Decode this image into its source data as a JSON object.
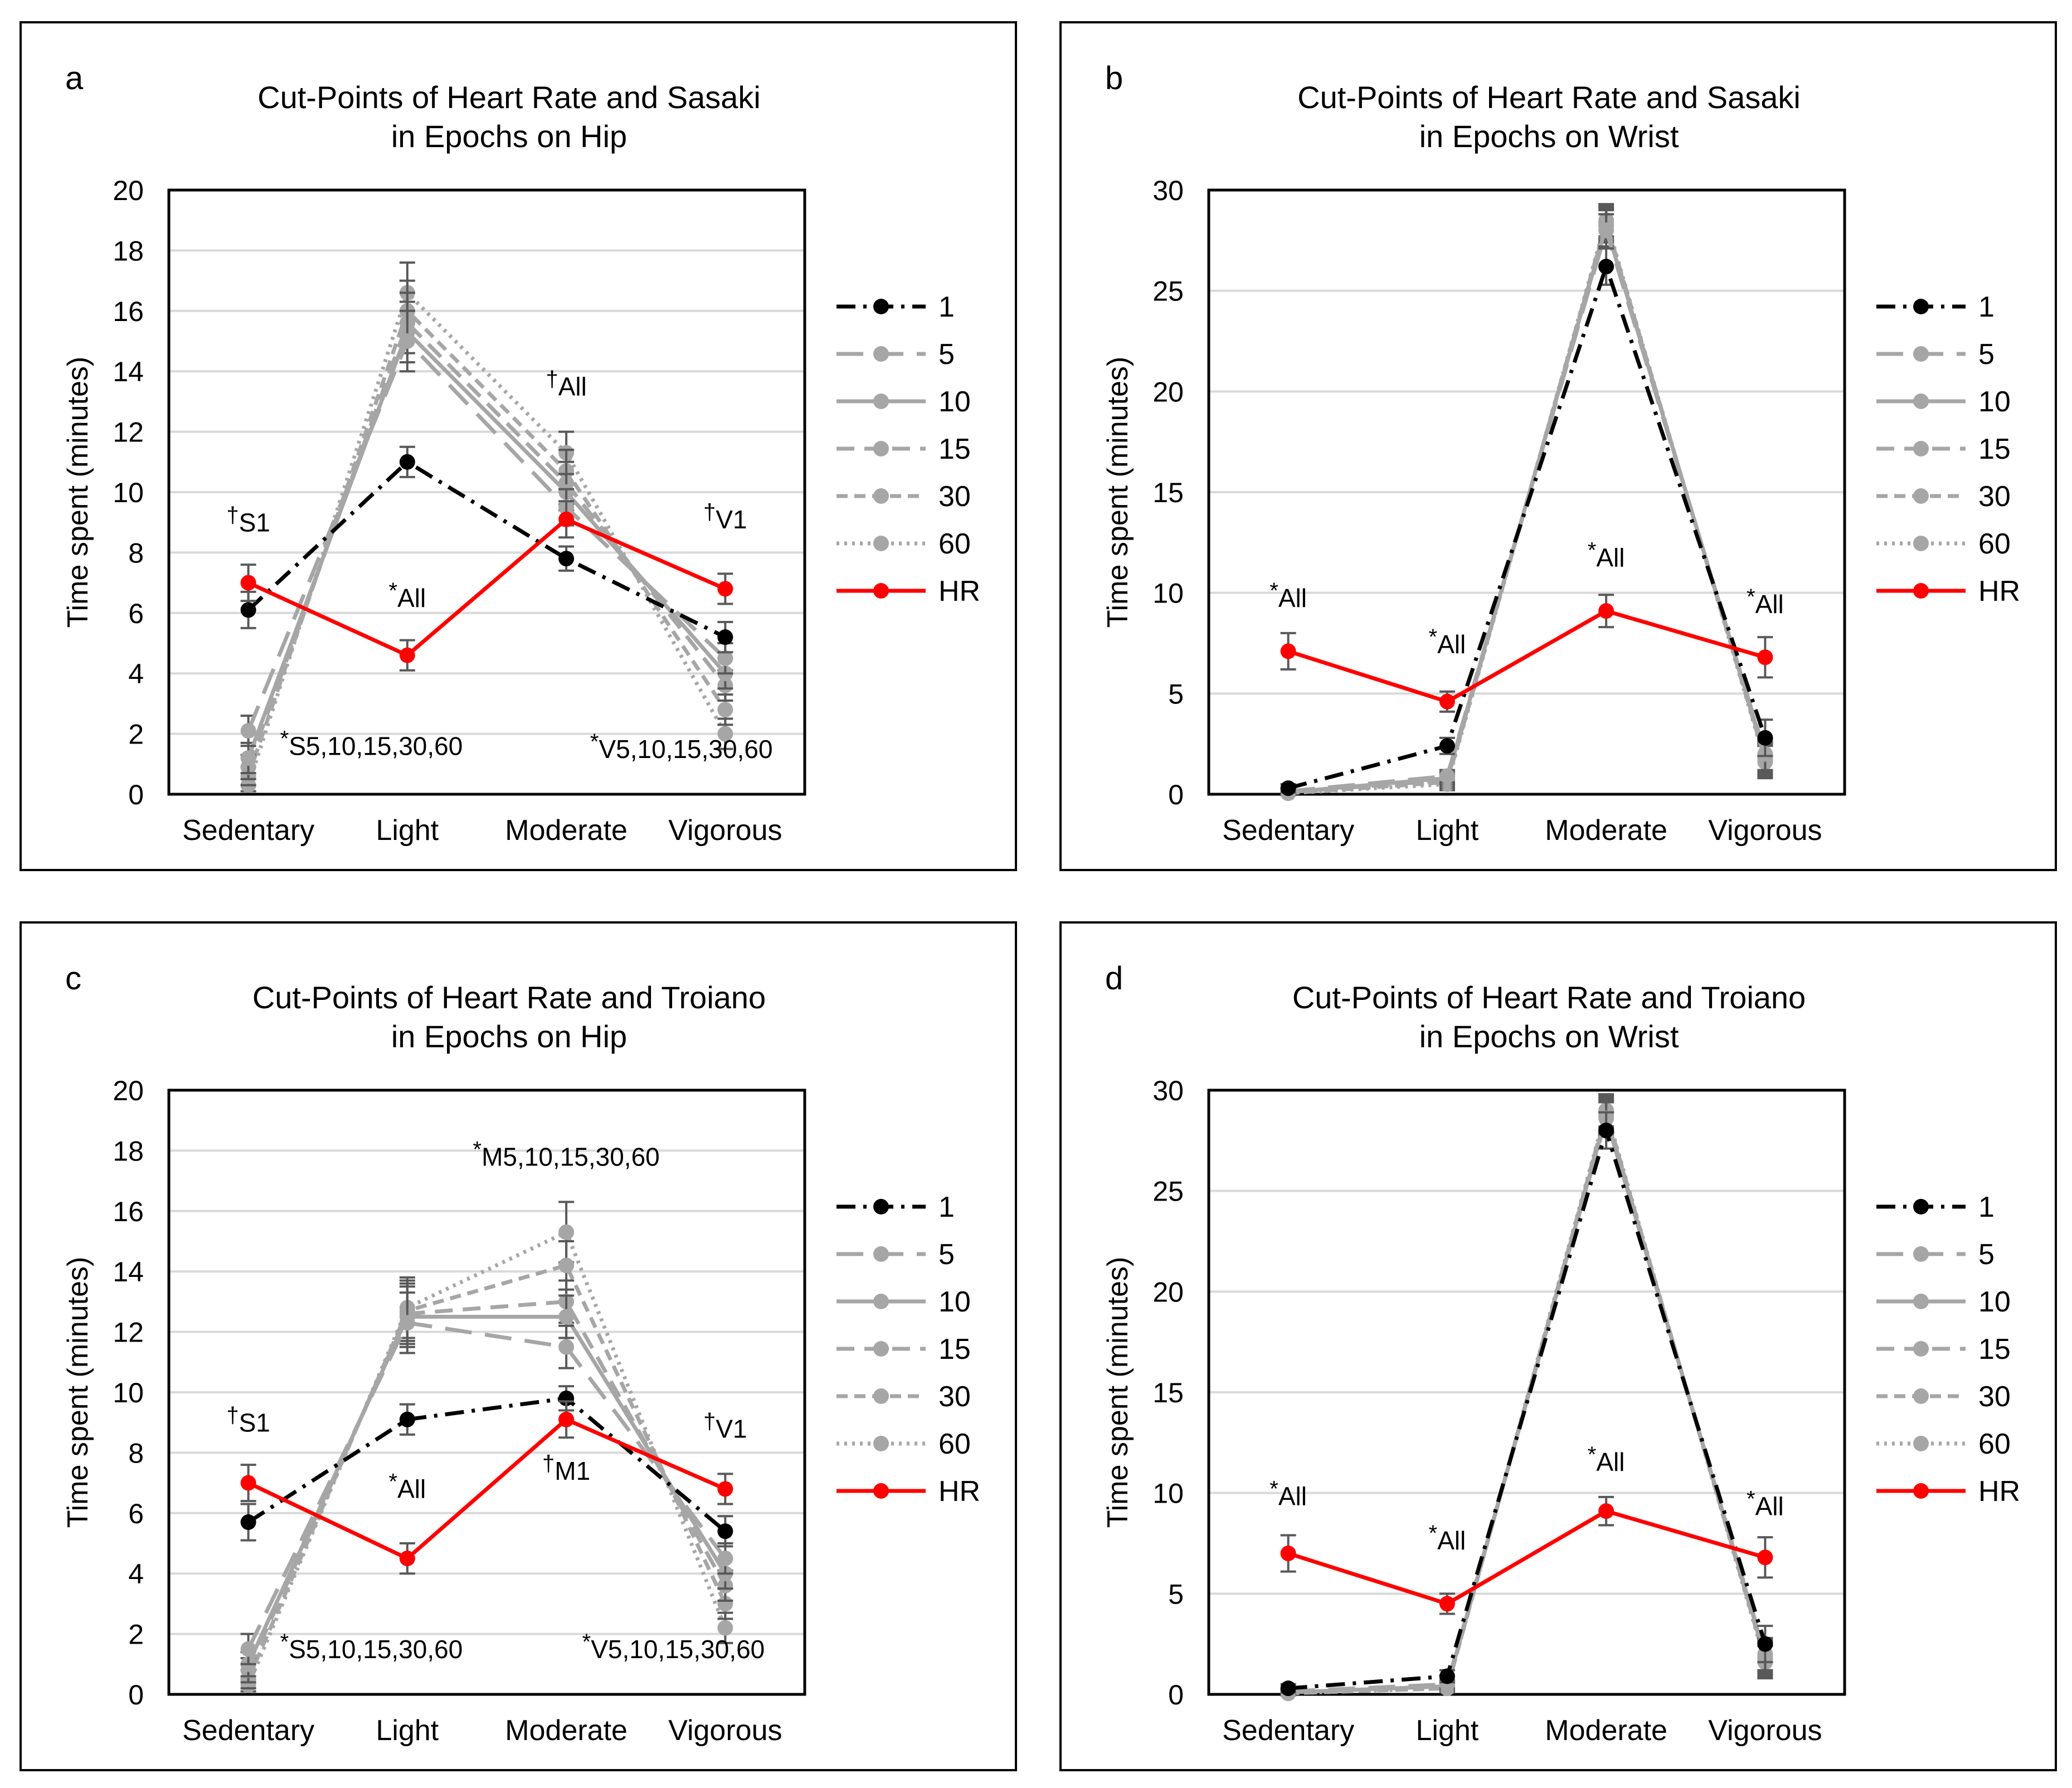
{
  "colors": {
    "black": "#000000",
    "gray": "#a6a6a6",
    "red": "#ff0000",
    "grid": "#d9d9d9",
    "errbar": "#595959"
  },
  "legend_order": [
    "1",
    "5",
    "10",
    "15",
    "30",
    "60",
    "HR"
  ],
  "chart_data": [
    {
      "panel_label": "a",
      "type": "line",
      "title_line1": "Cut-Points of Heart Rate and Sasaki",
      "title_line2": "in Epochs on Hip",
      "ylabel": "Time spent (minutes)",
      "ylim": [
        0,
        20
      ],
      "yticks": [
        "0",
        "2",
        "4",
        "6",
        "8",
        "10",
        "12",
        "14",
        "16",
        "18",
        "20"
      ],
      "categories": [
        "Sedentary",
        "Light",
        "Moderate",
        "Vigorous"
      ],
      "series": [
        {
          "name": "1",
          "values": [
            6.1,
            11.0,
            7.8,
            5.2
          ],
          "err": [
            0.6,
            0.5,
            0.4,
            0.5
          ]
        },
        {
          "name": "5",
          "values": [
            2.1,
            15.0,
            9.5,
            4.5
          ],
          "err": [
            0.5,
            1.0,
            0.6,
            0.5
          ]
        },
        {
          "name": "10",
          "values": [
            1.2,
            15.3,
            10.0,
            4.0
          ],
          "err": [
            0.5,
            1.0,
            0.6,
            0.5
          ]
        },
        {
          "name": "15",
          "values": [
            0.9,
            15.6,
            10.3,
            3.6
          ],
          "err": [
            0.4,
            1.0,
            0.7,
            0.5
          ]
        },
        {
          "name": "30",
          "values": [
            0.6,
            16.0,
            10.7,
            2.8
          ],
          "err": [
            0.3,
            1.0,
            0.7,
            0.5
          ]
        },
        {
          "name": "60",
          "values": [
            0.3,
            16.6,
            11.3,
            2.0
          ],
          "err": [
            0.2,
            1.0,
            0.7,
            0.5
          ]
        },
        {
          "name": "HR",
          "values": [
            7.0,
            4.6,
            9.1,
            6.8
          ],
          "err": [
            0.6,
            0.5,
            0.6,
            0.5
          ]
        }
      ],
      "annotations": [
        {
          "sym": "†",
          "text": "S1",
          "cat": 0,
          "y": 8.7,
          "anchor": "middle"
        },
        {
          "sym": "*",
          "text": "S5,10,15,30,60",
          "cat": 0.2,
          "y": 1.3,
          "anchor": "start"
        },
        {
          "sym": "*",
          "text": "All",
          "cat": 1,
          "y": 6.2,
          "anchor": "middle"
        },
        {
          "sym": "†",
          "text": "All",
          "cat": 2,
          "y": 13.2,
          "anchor": "middle"
        },
        {
          "sym": "*",
          "text": "V5,10,15,30,60",
          "cat": 2.15,
          "y": 1.2,
          "anchor": "start"
        },
        {
          "sym": "†",
          "text": "V1",
          "cat": 3,
          "y": 8.8,
          "anchor": "middle"
        }
      ]
    },
    {
      "panel_label": "b",
      "type": "line",
      "title_line1": "Cut-Points of Heart Rate and Sasaki",
      "title_line2": "in Epochs on Wrist",
      "ylabel": "Time spent (minutes)",
      "ylim": [
        0,
        30
      ],
      "yticks": [
        "0",
        "5",
        "10",
        "15",
        "20",
        "25",
        "30"
      ],
      "categories": [
        "Sedentary",
        "Light",
        "Moderate",
        "Vigorous"
      ],
      "series": [
        {
          "name": "1",
          "values": [
            0.3,
            2.4,
            26.2,
            2.8
          ],
          "err": [
            0.2,
            0.4,
            0.9,
            0.9
          ]
        },
        {
          "name": "5",
          "values": [
            0.15,
            0.9,
            28.0,
            2.0
          ],
          "err": [
            0.1,
            0.3,
            0.8,
            0.8
          ]
        },
        {
          "name": "10",
          "values": [
            0.1,
            0.8,
            28.2,
            1.9
          ],
          "err": [
            0.1,
            0.3,
            0.8,
            0.8
          ]
        },
        {
          "name": "15",
          "values": [
            0.1,
            0.7,
            28.3,
            1.8
          ],
          "err": [
            0.1,
            0.3,
            0.8,
            0.8
          ]
        },
        {
          "name": "30",
          "values": [
            0.05,
            0.6,
            28.4,
            1.7
          ],
          "err": [
            0.1,
            0.3,
            0.8,
            0.8
          ]
        },
        {
          "name": "60",
          "values": [
            0.05,
            0.5,
            28.5,
            1.6
          ],
          "err": [
            0.1,
            0.3,
            0.8,
            0.8
          ]
        },
        {
          "name": "HR",
          "values": [
            7.1,
            4.6,
            9.1,
            6.8
          ],
          "err": [
            0.9,
            0.5,
            0.8,
            1.0
          ]
        }
      ],
      "annotations": [
        {
          "sym": "*",
          "text": "All",
          "cat": 0,
          "y": 9.3,
          "anchor": "middle"
        },
        {
          "sym": "*",
          "text": "All",
          "cat": 1,
          "y": 7.0,
          "anchor": "middle"
        },
        {
          "sym": "*",
          "text": "All",
          "cat": 2,
          "y": 11.3,
          "anchor": "middle"
        },
        {
          "sym": "*",
          "text": "All",
          "cat": 3,
          "y": 9.0,
          "anchor": "middle"
        }
      ]
    },
    {
      "panel_label": "c",
      "type": "line",
      "title_line1": "Cut-Points of Heart Rate and Troiano",
      "title_line2": "in Epochs on Hip",
      "ylabel": "Time spent (minutes)",
      "ylim": [
        0,
        20
      ],
      "yticks": [
        "0",
        "2",
        "4",
        "6",
        "8",
        "10",
        "12",
        "14",
        "16",
        "18",
        "20"
      ],
      "categories": [
        "Sedentary",
        "Light",
        "Moderate",
        "Vigorous"
      ],
      "series": [
        {
          "name": "1",
          "values": [
            5.7,
            9.1,
            9.8,
            5.4
          ],
          "err": [
            0.6,
            0.5,
            0.4,
            0.5
          ]
        },
        {
          "name": "5",
          "values": [
            1.5,
            12.3,
            11.5,
            4.5
          ],
          "err": [
            0.5,
            1.0,
            0.7,
            0.5
          ]
        },
        {
          "name": "10",
          "values": [
            1.0,
            12.5,
            12.5,
            4.0
          ],
          "err": [
            0.4,
            1.0,
            0.7,
            0.5
          ]
        },
        {
          "name": "15",
          "values": [
            0.8,
            12.6,
            13.0,
            3.6
          ],
          "err": [
            0.4,
            1.0,
            0.7,
            0.5
          ]
        },
        {
          "name": "30",
          "values": [
            0.5,
            12.7,
            14.2,
            3.0
          ],
          "err": [
            0.3,
            1.0,
            0.8,
            0.5
          ]
        },
        {
          "name": "60",
          "values": [
            0.3,
            12.8,
            15.3,
            2.2
          ],
          "err": [
            0.2,
            1.0,
            1.0,
            0.5
          ]
        },
        {
          "name": "HR",
          "values": [
            7.0,
            4.5,
            9.1,
            6.8
          ],
          "err": [
            0.6,
            0.5,
            0.6,
            0.5
          ]
        }
      ],
      "annotations": [
        {
          "sym": "†",
          "text": "S1",
          "cat": 0,
          "y": 8.7,
          "anchor": "middle"
        },
        {
          "sym": "*",
          "text": "S5,10,15,30,60",
          "cat": 0.2,
          "y": 1.2,
          "anchor": "start"
        },
        {
          "sym": "*",
          "text": "All",
          "cat": 1,
          "y": 6.5,
          "anchor": "middle"
        },
        {
          "sym": "*",
          "text": "M5,10,15,30,60",
          "cat": 2,
          "y": 17.5,
          "anchor": "middle"
        },
        {
          "sym": "†",
          "text": "M1",
          "cat": 2,
          "y": 7.1,
          "anchor": "middle"
        },
        {
          "sym": "*",
          "text": "V5,10,15,30,60",
          "cat": 2.1,
          "y": 1.2,
          "anchor": "start"
        },
        {
          "sym": "†",
          "text": "V1",
          "cat": 3,
          "y": 8.5,
          "anchor": "middle"
        }
      ]
    },
    {
      "panel_label": "d",
      "type": "line",
      "title_line1": "Cut-Points of Heart Rate and Troiano",
      "title_line2": "in Epochs on Wrist",
      "ylabel": "Time spent (minutes)",
      "ylim": [
        0,
        30
      ],
      "yticks": [
        "0",
        "5",
        "10",
        "15",
        "20",
        "25",
        "30"
      ],
      "categories": [
        "Sedentary",
        "Light",
        "Moderate",
        "Vigorous"
      ],
      "series": [
        {
          "name": "1",
          "values": [
            0.3,
            0.9,
            28.0,
            2.5
          ],
          "err": [
            0.2,
            0.3,
            0.9,
            0.9
          ]
        },
        {
          "name": "5",
          "values": [
            0.15,
            0.5,
            28.6,
            2.0
          ],
          "err": [
            0.1,
            0.2,
            0.8,
            0.8
          ]
        },
        {
          "name": "10",
          "values": [
            0.1,
            0.4,
            28.7,
            1.9
          ],
          "err": [
            0.1,
            0.2,
            0.8,
            0.8
          ]
        },
        {
          "name": "15",
          "values": [
            0.1,
            0.4,
            28.8,
            1.8
          ],
          "err": [
            0.1,
            0.2,
            0.8,
            0.8
          ]
        },
        {
          "name": "30",
          "values": [
            0.05,
            0.3,
            28.9,
            1.7
          ],
          "err": [
            0.1,
            0.2,
            0.8,
            0.8
          ]
        },
        {
          "name": "60",
          "values": [
            0.05,
            0.3,
            29.0,
            1.6
          ],
          "err": [
            0.1,
            0.2,
            0.8,
            0.8
          ]
        },
        {
          "name": "HR",
          "values": [
            7.0,
            4.5,
            9.1,
            6.8
          ],
          "err": [
            0.9,
            0.5,
            0.7,
            1.0
          ]
        }
      ],
      "annotations": [
        {
          "sym": "*",
          "text": "All",
          "cat": 0,
          "y": 9.4,
          "anchor": "middle"
        },
        {
          "sym": "*",
          "text": "All",
          "cat": 1,
          "y": 7.2,
          "anchor": "middle"
        },
        {
          "sym": "*",
          "text": "All",
          "cat": 2,
          "y": 11.1,
          "anchor": "middle"
        },
        {
          "sym": "*",
          "text": "All",
          "cat": 3,
          "y": 8.9,
          "anchor": "middle"
        }
      ]
    }
  ]
}
